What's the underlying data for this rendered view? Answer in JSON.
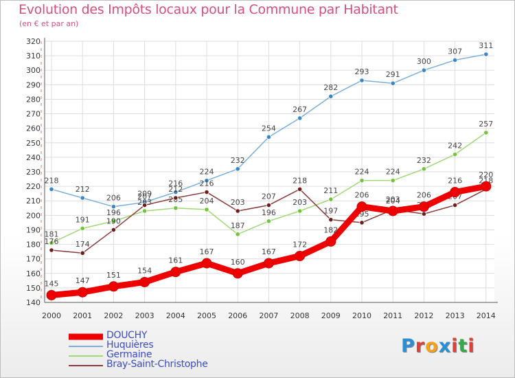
{
  "header": {
    "title": "Evolution des Impôts locaux pour la Commune par Habitant",
    "subtitle": "(en € et par an)"
  },
  "logo": {
    "letters": [
      "P",
      "r",
      "o",
      "x",
      "i",
      "t",
      "i"
    ],
    "colors": [
      "#2a8fd6",
      "#e0403a",
      "#f4a21e",
      "#2a8fd6",
      "#e0403a",
      "#3aa84a",
      "#e0403a"
    ]
  },
  "chart_data": {
    "type": "line",
    "title": "Evolution des Impôts locaux pour la Commune par Habitant",
    "subtitle": "(en € et par an)",
    "x": [
      2000,
      2001,
      2002,
      2003,
      2004,
      2005,
      2006,
      2007,
      2008,
      2009,
      2010,
      2011,
      2012,
      2013,
      2014
    ],
    "ylim": [
      140,
      320
    ],
    "yticks": [
      140,
      150,
      160,
      170,
      180,
      190,
      200,
      210,
      220,
      230,
      240,
      250,
      260,
      270,
      280,
      290,
      300,
      310,
      320
    ],
    "grid": true,
    "legend_position": "bottom-left",
    "series": [
      {
        "name": "Huquières",
        "color": "#7aaedb",
        "marker": "#3d86c6",
        "values": [
          218,
          212,
          206,
          209,
          216,
          224,
          232,
          254,
          267,
          282,
          293,
          291,
          300,
          307,
          311
        ]
      },
      {
        "name": "Germaine",
        "color": "#9fd877",
        "marker": "#73c43c",
        "values": [
          181,
          191,
          196,
          203,
          205,
          204,
          187,
          196,
          203,
          211,
          224,
          224,
          232,
          242,
          257
        ]
      },
      {
        "name": "Bray-Saint-Christophe",
        "color": "#8a3a3a",
        "marker": "#6b1e1e",
        "values": [
          176,
          174,
          190,
          207,
          212,
          216,
          203,
          207,
          218,
          197,
          195,
          204,
          201,
          207,
          218
        ]
      },
      {
        "name": "DOUCHY",
        "color": "#ee0000",
        "marker": "#ee0000",
        "values": [
          145,
          147,
          151,
          154,
          161,
          167,
          160,
          167,
          172,
          182,
          206,
          203,
          206,
          216,
          220
        ]
      }
    ]
  }
}
